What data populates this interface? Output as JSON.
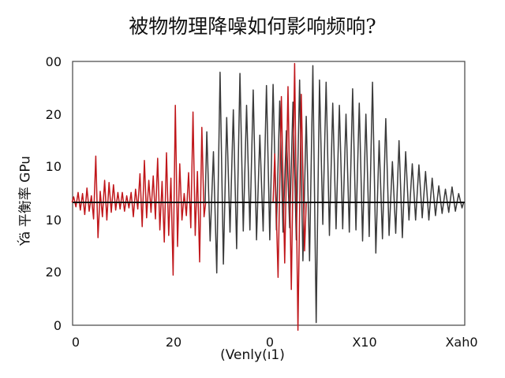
{
  "chart_data": {
    "type": "line",
    "title": "被物物理降噪如何影响频响?",
    "xlabel": "(Venly(ı1)",
    "ylabel": "Ýä 平衡率 GPu",
    "x_tick_labels": [
      "0",
      "20",
      "0",
      "X10",
      "Xah0"
    ],
    "y_tick_labels": [
      "00",
      "20",
      "10",
      "10",
      "20",
      "0"
    ],
    "ylim": [
      -20,
      20
    ],
    "grid": false,
    "legend": "none",
    "baseline": 0,
    "series": [
      {
        "color": "#c0171b",
        "style": "spiky oscillation",
        "peaks": [
          {
            "x": 0.2,
            "y": 0.5
          },
          {
            "x": 0.6,
            "y": -0.4
          },
          {
            "x": 1.0,
            "y": 0.9
          },
          {
            "x": 1.4,
            "y": -0.7
          },
          {
            "x": 1.8,
            "y": 0.8
          },
          {
            "x": 2.2,
            "y": -1.1
          },
          {
            "x": 2.6,
            "y": 1.3
          },
          {
            "x": 3.0,
            "y": -0.8
          },
          {
            "x": 3.4,
            "y": 0.6
          },
          {
            "x": 3.8,
            "y": -1.5
          },
          {
            "x": 4.2,
            "y": 4.2
          },
          {
            "x": 4.6,
            "y": -3.2
          },
          {
            "x": 5.0,
            "y": 1.0
          },
          {
            "x": 5.4,
            "y": -1.3
          },
          {
            "x": 5.8,
            "y": 2.0
          },
          {
            "x": 6.2,
            "y": -1.6
          },
          {
            "x": 6.6,
            "y": 1.8
          },
          {
            "x": 7.0,
            "y": -0.9
          },
          {
            "x": 7.4,
            "y": 1.6
          },
          {
            "x": 7.8,
            "y": -0.7
          },
          {
            "x": 8.2,
            "y": 0.9
          },
          {
            "x": 8.6,
            "y": -0.6
          },
          {
            "x": 9.0,
            "y": 0.9
          },
          {
            "x": 9.4,
            "y": -0.8
          },
          {
            "x": 9.8,
            "y": 0.6
          },
          {
            "x": 10.2,
            "y": -0.5
          },
          {
            "x": 10.6,
            "y": 0.9
          },
          {
            "x": 11.0,
            "y": -1.3
          },
          {
            "x": 11.4,
            "y": 1.2
          },
          {
            "x": 11.8,
            "y": -0.6
          },
          {
            "x": 12.2,
            "y": 2.6
          },
          {
            "x": 12.6,
            "y": -2.2
          },
          {
            "x": 13.0,
            "y": 3.8
          },
          {
            "x": 13.4,
            "y": -1.4
          },
          {
            "x": 13.8,
            "y": 2.0
          },
          {
            "x": 14.2,
            "y": -0.9
          },
          {
            "x": 14.6,
            "y": 2.4
          },
          {
            "x": 15.0,
            "y": -1.5
          },
          {
            "x": 15.4,
            "y": 4.0
          },
          {
            "x": 15.8,
            "y": -2.5
          },
          {
            "x": 16.2,
            "y": 1.9
          },
          {
            "x": 16.6,
            "y": -3.6
          },
          {
            "x": 17.0,
            "y": 4.5
          },
          {
            "x": 17.4,
            "y": -3.0
          },
          {
            "x": 17.8,
            "y": 2.2
          },
          {
            "x": 18.2,
            "y": -6.6
          },
          {
            "x": 18.6,
            "y": 8.8
          },
          {
            "x": 19.0,
            "y": -4.0
          },
          {
            "x": 19.4,
            "y": 3.5
          },
          {
            "x": 19.8,
            "y": -1.6
          },
          {
            "x": 20.2,
            "y": 0.8
          },
          {
            "x": 20.6,
            "y": -1.2
          },
          {
            "x": 21.0,
            "y": 2.7
          },
          {
            "x": 21.4,
            "y": -2.3
          },
          {
            "x": 21.8,
            "y": 8.2
          },
          {
            "x": 22.2,
            "y": -3.0
          },
          {
            "x": 22.6,
            "y": 2.8
          },
          {
            "x": 23.0,
            "y": -5.4
          },
          {
            "x": 23.4,
            "y": 6.8
          },
          {
            "x": 23.8,
            "y": -1.3
          }
        ]
      },
      {
        "color": "#3a3a3a",
        "style": "dense oscillation",
        "peaks": [
          {
            "x": 24.3,
            "y": 6.4
          },
          {
            "x": 24.9,
            "y": -3.5
          },
          {
            "x": 25.5,
            "y": 4.6
          },
          {
            "x": 26.1,
            "y": -6.4
          },
          {
            "x": 26.7,
            "y": 11.8
          },
          {
            "x": 27.3,
            "y": -5.6
          },
          {
            "x": 27.9,
            "y": 7.7
          },
          {
            "x": 28.5,
            "y": -2.7
          },
          {
            "x": 29.1,
            "y": 8.4
          },
          {
            "x": 29.7,
            "y": -4.2
          },
          {
            "x": 30.3,
            "y": 11.7
          },
          {
            "x": 30.9,
            "y": -2.6
          },
          {
            "x": 31.5,
            "y": 8.8
          },
          {
            "x": 32.1,
            "y": -2.5
          },
          {
            "x": 32.7,
            "y": 10.2
          },
          {
            "x": 33.3,
            "y": -3.4
          },
          {
            "x": 33.9,
            "y": 6.1
          },
          {
            "x": 34.5,
            "y": -2.6
          },
          {
            "x": 35.1,
            "y": 10.6
          },
          {
            "x": 35.7,
            "y": -3.4
          },
          {
            "x": 36.3,
            "y": 10.7
          },
          {
            "x": 36.9,
            "y": -2.5
          },
          {
            "x": 37.5,
            "y": 9.2
          },
          {
            "x": 38.1,
            "y": -2.7
          },
          {
            "x": 38.7,
            "y": 6.5
          },
          {
            "x": 39.3,
            "y": -2.3
          },
          {
            "x": 39.9,
            "y": 9.1
          },
          {
            "x": 40.5,
            "y": -3.4
          },
          {
            "x": 41.1,
            "y": 11.1
          },
          {
            "x": 41.7,
            "y": -5.3
          },
          {
            "x": 42.3,
            "y": 7.8
          },
          {
            "x": 42.9,
            "y": -5.3
          },
          {
            "x": 43.5,
            "y": 12.4
          },
          {
            "x": 44.1,
            "y": -10.9
          },
          {
            "x": 44.7,
            "y": 11.1
          },
          {
            "x": 45.3,
            "y": -2.0
          },
          {
            "x": 45.9,
            "y": 10.9
          },
          {
            "x": 46.5,
            "y": -3.0
          },
          {
            "x": 47.1,
            "y": 9.0
          },
          {
            "x": 47.7,
            "y": -2.4
          },
          {
            "x": 48.3,
            "y": 8.8
          },
          {
            "x": 48.9,
            "y": -2.4
          },
          {
            "x": 49.5,
            "y": 8.0
          },
          {
            "x": 50.1,
            "y": -2.7
          },
          {
            "x": 50.7,
            "y": 10.3
          },
          {
            "x": 51.3,
            "y": -2.5
          },
          {
            "x": 51.9,
            "y": 9.0
          },
          {
            "x": 52.5,
            "y": -3.5
          },
          {
            "x": 53.1,
            "y": 8.0
          },
          {
            "x": 53.7,
            "y": -3.1
          },
          {
            "x": 54.3,
            "y": 10.9
          },
          {
            "x": 54.9,
            "y": -4.6
          },
          {
            "x": 55.5,
            "y": 5.6
          },
          {
            "x": 56.1,
            "y": -3.3
          },
          {
            "x": 56.7,
            "y": 7.6
          },
          {
            "x": 57.3,
            "y": -3.0
          },
          {
            "x": 57.9,
            "y": 3.7
          },
          {
            "x": 58.5,
            "y": -2.8
          },
          {
            "x": 59.1,
            "y": 5.6
          },
          {
            "x": 59.7,
            "y": -3.2
          },
          {
            "x": 60.3,
            "y": 4.6
          },
          {
            "x": 60.9,
            "y": -1.6
          },
          {
            "x": 61.5,
            "y": 3.5
          },
          {
            "x": 62.1,
            "y": -1.6
          },
          {
            "x": 62.7,
            "y": 3.4
          },
          {
            "x": 63.3,
            "y": -1.4
          },
          {
            "x": 63.9,
            "y": 2.8
          },
          {
            "x": 64.5,
            "y": -1.6
          },
          {
            "x": 65.1,
            "y": 2.2
          },
          {
            "x": 65.7,
            "y": -1.2
          },
          {
            "x": 66.3,
            "y": 1.5
          },
          {
            "x": 66.9,
            "y": -1.0
          },
          {
            "x": 67.5,
            "y": 1.2
          },
          {
            "x": 68.1,
            "y": -0.9
          },
          {
            "x": 68.7,
            "y": 1.4
          },
          {
            "x": 69.3,
            "y": -0.8
          },
          {
            "x": 69.9,
            "y": 0.8
          },
          {
            "x": 70.5,
            "y": -0.5
          }
        ]
      },
      {
        "color": "#c0171b",
        "style": "spiky oscillation",
        "peaks": [
          {
            "x": 36.6,
            "y": 4.4
          },
          {
            "x": 37.2,
            "y": -6.8
          },
          {
            "x": 37.8,
            "y": 9.6
          },
          {
            "x": 38.4,
            "y": -5.5
          },
          {
            "x": 39.0,
            "y": 10.5
          },
          {
            "x": 39.6,
            "y": -7.9
          },
          {
            "x": 40.2,
            "y": 12.6
          },
          {
            "x": 40.8,
            "y": -11.6
          },
          {
            "x": 41.4,
            "y": 9.8
          },
          {
            "x": 42.0,
            "y": -4.4
          }
        ]
      }
    ]
  }
}
